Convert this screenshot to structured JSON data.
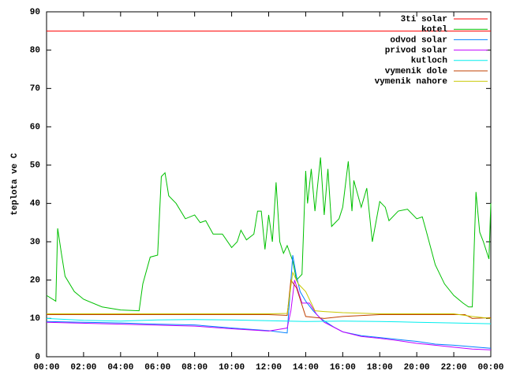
{
  "chart_data": {
    "type": "line",
    "ylabel": "teplota ve C",
    "xlim": [
      0,
      24
    ],
    "xticks": [
      {
        "value": 0,
        "label": "00:00"
      },
      {
        "value": 2,
        "label": "02:00"
      },
      {
        "value": 4,
        "label": "04:00"
      },
      {
        "value": 6,
        "label": "06:00"
      },
      {
        "value": 8,
        "label": "08:00"
      },
      {
        "value": 10,
        "label": "10:00"
      },
      {
        "value": 12,
        "label": "12:00"
      },
      {
        "value": 14,
        "label": "14:00"
      },
      {
        "value": 16,
        "label": "16:00"
      },
      {
        "value": 18,
        "label": "18:00"
      },
      {
        "value": 20,
        "label": "20:00"
      },
      {
        "value": 22,
        "label": "22:00"
      },
      {
        "value": 24,
        "label": "00:00"
      }
    ],
    "ylim": [
      0,
      90
    ],
    "yticks": [
      0,
      10,
      20,
      30,
      40,
      50,
      60,
      70,
      80,
      90
    ],
    "grid": false,
    "legend": "top-right",
    "series": [
      {
        "name": "3ti solar",
        "color": "#ff0000",
        "x": [
          0,
          24
        ],
        "values": [
          85,
          85
        ]
      },
      {
        "name": "kotel",
        "color": "#00c000",
        "x": [
          0,
          0.5,
          0.6,
          0.8,
          1.0,
          1.5,
          2.0,
          3.0,
          4.0,
          5.0,
          5.2,
          5.6,
          6.0,
          6.2,
          6.4,
          6.6,
          7.0,
          7.5,
          8.0,
          8.3,
          8.6,
          9.0,
          9.5,
          10.0,
          10.3,
          10.5,
          10.8,
          11.2,
          11.4,
          11.6,
          11.8,
          12.0,
          12.2,
          12.4,
          12.6,
          12.8,
          13.0,
          13.3,
          13.5,
          13.8,
          14.0,
          14.1,
          14.3,
          14.5,
          14.8,
          15.0,
          15.2,
          15.4,
          15.8,
          16.0,
          16.3,
          16.5,
          16.6,
          17.0,
          17.3,
          17.6,
          18.0,
          18.3,
          18.5,
          19.0,
          19.5,
          20.0,
          20.3,
          20.5,
          21.0,
          21.5,
          22.0,
          22.5,
          22.8,
          23.0,
          23.2,
          23.4,
          23.6,
          23.9,
          24.0
        ],
        "values": [
          16,
          14.5,
          33.5,
          27,
          21,
          17,
          15,
          13,
          12.2,
          12,
          19,
          26,
          26.5,
          47,
          48,
          42,
          40,
          36,
          37,
          35,
          35.5,
          32,
          32,
          28.5,
          30,
          33,
          30.5,
          32,
          38,
          38,
          28,
          37,
          30,
          45.5,
          30,
          27,
          29,
          25,
          20,
          21.5,
          48.5,
          40,
          49,
          38,
          52,
          37,
          49,
          34,
          36,
          39,
          51,
          38,
          46,
          39,
          44,
          30,
          40.5,
          39,
          35.5,
          38,
          38.5,
          36,
          36.5,
          33,
          24,
          19,
          16,
          14,
          13,
          13,
          43,
          32.5,
          30,
          25.5,
          40
        ]
      },
      {
        "name": "odvod solar",
        "color": "#0080ff",
        "x": [
          0,
          2,
          4,
          6,
          8,
          10,
          12,
          13,
          13.3,
          13.5,
          13.7,
          14,
          14.4,
          14.8,
          15.5,
          16,
          17,
          18,
          19,
          20,
          21,
          22,
          23,
          24
        ],
        "values": [
          9.2,
          9,
          8.8,
          8.5,
          8.3,
          7.5,
          6.8,
          6.2,
          26.5,
          21,
          17,
          14.5,
          12,
          10,
          7.8,
          6.5,
          5.5,
          5,
          4.5,
          4,
          3.3,
          3,
          2.6,
          2.2
        ]
      },
      {
        "name": "privod solar",
        "color": "#c000ff",
        "x": [
          0,
          4,
          8,
          10,
          12,
          13,
          13.2,
          13.4,
          13.8,
          14.2,
          14.6,
          15,
          16,
          17,
          18,
          19,
          20,
          21,
          22,
          23,
          24
        ],
        "values": [
          9,
          8.5,
          8,
          7.3,
          6.7,
          7.5,
          12,
          20,
          14,
          14,
          11,
          9,
          6.5,
          5.3,
          4.8,
          4.2,
          3.5,
          3,
          2.5,
          2,
          1.8
        ]
      },
      {
        "name": "kutloch",
        "color": "#00eeee",
        "x": [
          0,
          2,
          4,
          6,
          8,
          10,
          12,
          13,
          14,
          16,
          18,
          20,
          22,
          24
        ],
        "values": [
          10,
          9.5,
          9.3,
          9.6,
          9.7,
          9.6,
          9.4,
          9.3,
          9.2,
          9.3,
          9.2,
          9,
          8.8,
          8.6
        ]
      },
      {
        "name": "vymenik dole",
        "color": "#c04000",
        "x": [
          0,
          6,
          12,
          13,
          13.2,
          13.5,
          14,
          15,
          16,
          18,
          20,
          22,
          22.6,
          23,
          24
        ],
        "values": [
          11,
          11,
          11,
          10.8,
          20,
          18,
          10.5,
          10,
          10.5,
          11,
          11,
          11,
          11,
          10,
          10.2
        ]
      },
      {
        "name": "vymenik nahore",
        "color": "#c8c800",
        "x": [
          0,
          6,
          12,
          13,
          13.3,
          13.6,
          14,
          14.5,
          15,
          16,
          18,
          20,
          22,
          23,
          24
        ],
        "values": [
          11.2,
          11.2,
          11.2,
          11.3,
          22,
          19,
          17,
          12,
          11.8,
          11.5,
          11.2,
          11.2,
          11.2,
          10.5,
          10
        ]
      }
    ]
  }
}
